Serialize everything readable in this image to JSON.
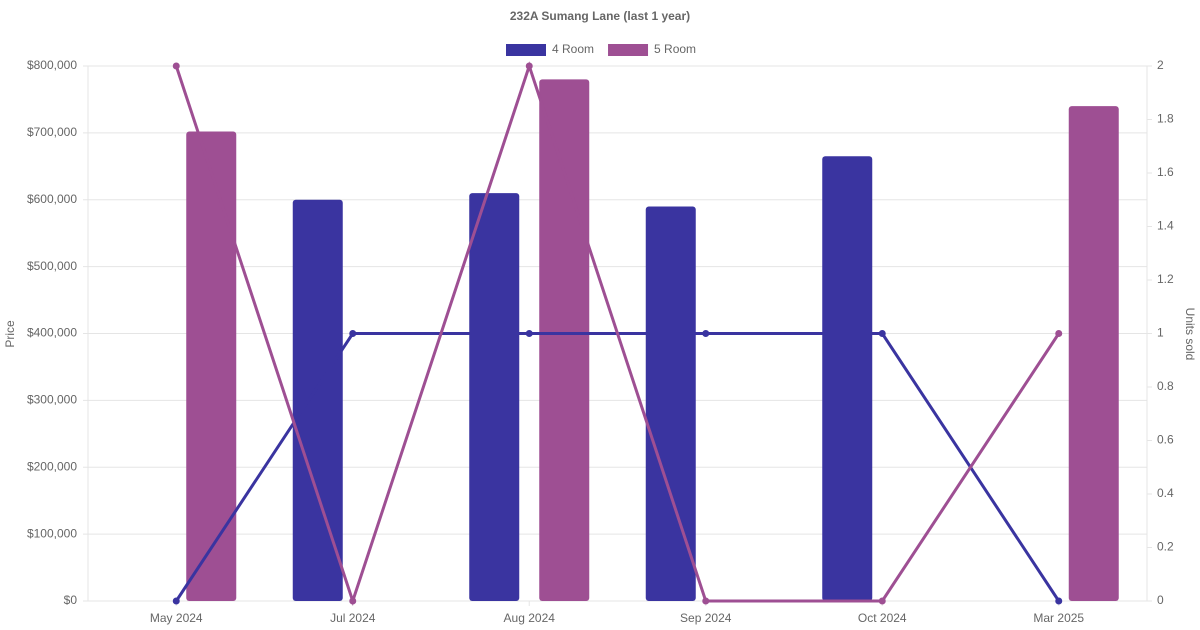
{
  "chart_data": {
    "type": "bar-line",
    "title": "232A Sumang Lane (last 1 year)",
    "y_label": "Price",
    "y2_label": "Units sold",
    "categories": [
      "May 2024",
      "Jul 2024",
      "Aug 2024",
      "Sep 2024",
      "Oct 2024",
      "Mar 2025"
    ],
    "series": [
      {
        "name": "4 Room",
        "color": "#3a34a0",
        "values": [
          null,
          600000,
          610000,
          590000,
          665000,
          null
        ],
        "units": [
          0,
          1,
          1,
          1,
          1,
          0
        ]
      },
      {
        "name": "5 Room",
        "color": "#9e4f93",
        "values": [
          702000,
          null,
          780000,
          null,
          null,
          740000
        ],
        "units": [
          2,
          0,
          2,
          0,
          0,
          1
        ]
      }
    ],
    "ylim": [
      0,
      800000
    ],
    "yticks": [
      {
        "value": 0,
        "label": "$0"
      },
      {
        "value": 100000,
        "label": "$100,000"
      },
      {
        "value": 200000,
        "label": "$200,000"
      },
      {
        "value": 300000,
        "label": "$300,000"
      },
      {
        "value": 400000,
        "label": "$400,000"
      },
      {
        "value": 500000,
        "label": "$500,000"
      },
      {
        "value": 600000,
        "label": "$600,000"
      },
      {
        "value": 700000,
        "label": "$700,000"
      },
      {
        "value": 800000,
        "label": "$800,000"
      }
    ],
    "y2lim": [
      0,
      2
    ],
    "y2ticks": [
      0,
      0.2,
      0.4,
      0.6,
      0.8,
      1,
      1.2,
      1.4,
      1.6,
      1.8,
      2
    ],
    "grid": true
  }
}
